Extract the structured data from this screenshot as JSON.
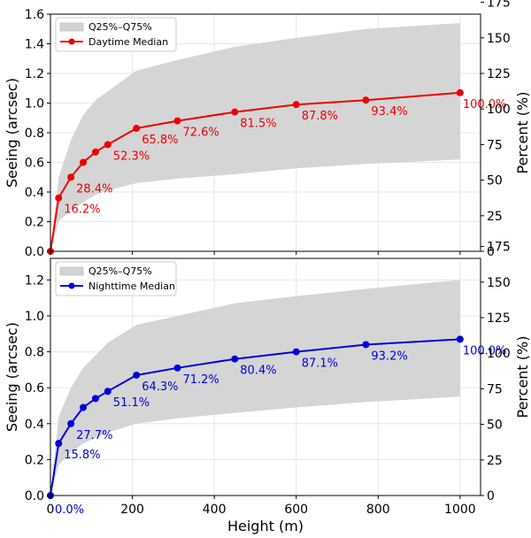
{
  "chart_data": [
    {
      "type": "line",
      "xlabel": "",
      "ylabel": "Seeing (arcsec)",
      "y2label": "Percent (%)",
      "xlim": [
        0,
        1050
      ],
      "ylim": [
        0,
        1.6
      ],
      "xticks": [
        0,
        200,
        400,
        600,
        800,
        1000
      ],
      "yticks": [
        "0.0",
        "0.2",
        "0.4",
        "0.6",
        "0.8",
        "1.0",
        "1.2",
        "1.4",
        "1.6"
      ],
      "y2ticks": [
        "0",
        "25",
        "50",
        "75",
        "100",
        "125",
        "150",
        "175"
      ],
      "grid": true,
      "legend_position": "top-left",
      "band": {
        "name": "Q25%–Q75%",
        "color": "#d3d3d3",
        "x": [
          0,
          20,
          50,
          80,
          110,
          140,
          210,
          310,
          450,
          600,
          770,
          1000
        ],
        "lower": [
          0.0,
          0.2,
          0.28,
          0.33,
          0.38,
          0.41,
          0.46,
          0.49,
          0.52,
          0.56,
          0.59,
          0.62
        ],
        "upper": [
          0.0,
          0.5,
          0.75,
          0.92,
          1.02,
          1.08,
          1.22,
          1.29,
          1.38,
          1.44,
          1.5,
          1.54
        ]
      },
      "series": [
        {
          "name": "Daytime Median",
          "color": "#ee0000",
          "x": [
            0,
            20,
            50,
            80,
            110,
            140,
            210,
            310,
            450,
            600,
            770,
            1000
          ],
          "y": [
            0.0,
            0.36,
            0.5,
            0.6,
            0.67,
            0.72,
            0.83,
            0.88,
            0.94,
            0.99,
            1.02,
            1.07
          ]
        }
      ],
      "point_labels": [
        {
          "x": 20,
          "y": 0.36,
          "text": "16.2%"
        },
        {
          "x": 50,
          "y": 0.5,
          "text": "28.4%"
        },
        {
          "x": 140,
          "y": 0.72,
          "text": "52.3%"
        },
        {
          "x": 210,
          "y": 0.83,
          "text": "65.8%"
        },
        {
          "x": 310,
          "y": 0.88,
          "text": "72.6%"
        },
        {
          "x": 450,
          "y": 0.94,
          "text": "81.5%"
        },
        {
          "x": 600,
          "y": 0.99,
          "text": "87.8%"
        },
        {
          "x": 770,
          "y": 1.02,
          "text": "93.4%"
        },
        {
          "x": 1000,
          "y": 1.07,
          "text": "100.0%"
        }
      ]
    },
    {
      "type": "line",
      "xlabel": "Height (m)",
      "ylabel": "Seeing (arcsec)",
      "y2label": "Percent (%)",
      "xlim": [
        0,
        1050
      ],
      "ylim": [
        0,
        1.32
      ],
      "xticks": [
        0,
        200,
        400,
        600,
        800,
        1000
      ],
      "yticks": [
        "0.0",
        "0.2",
        "0.4",
        "0.6",
        "0.8",
        "1.0",
        "1.2"
      ],
      "y2ticks": [
        "0",
        "25",
        "50",
        "75",
        "100",
        "125",
        "150",
        "175"
      ],
      "grid": true,
      "legend_position": "top-left",
      "band": {
        "name": "Q25%–Q75%",
        "color": "#d3d3d3",
        "x": [
          0,
          20,
          50,
          80,
          110,
          140,
          210,
          310,
          450,
          600,
          770,
          1000
        ],
        "lower": [
          0.0,
          0.17,
          0.24,
          0.29,
          0.32,
          0.35,
          0.4,
          0.43,
          0.46,
          0.49,
          0.52,
          0.55
        ],
        "upper": [
          0.0,
          0.44,
          0.6,
          0.71,
          0.78,
          0.85,
          0.95,
          1.0,
          1.07,
          1.11,
          1.15,
          1.2
        ]
      },
      "series": [
        {
          "name": "Nighttime Median",
          "color": "#0000dd",
          "x": [
            0,
            20,
            50,
            80,
            110,
            140,
            210,
            310,
            450,
            600,
            770,
            1000
          ],
          "y": [
            0.0,
            0.29,
            0.4,
            0.49,
            0.54,
            0.58,
            0.67,
            0.71,
            0.76,
            0.8,
            0.84,
            0.87
          ]
        }
      ],
      "point_labels": [
        {
          "x": 0,
          "y": 0.0,
          "text": "0.0%"
        },
        {
          "x": 20,
          "y": 0.29,
          "text": "15.8%"
        },
        {
          "x": 50,
          "y": 0.4,
          "text": "27.7%"
        },
        {
          "x": 140,
          "y": 0.58,
          "text": "51.1%"
        },
        {
          "x": 210,
          "y": 0.67,
          "text": "64.3%"
        },
        {
          "x": 310,
          "y": 0.71,
          "text": "71.2%"
        },
        {
          "x": 450,
          "y": 0.76,
          "text": "80.4%"
        },
        {
          "x": 600,
          "y": 0.8,
          "text": "87.1%"
        },
        {
          "x": 770,
          "y": 0.84,
          "text": "93.2%"
        },
        {
          "x": 1000,
          "y": 0.87,
          "text": "100.0%"
        }
      ]
    }
  ]
}
